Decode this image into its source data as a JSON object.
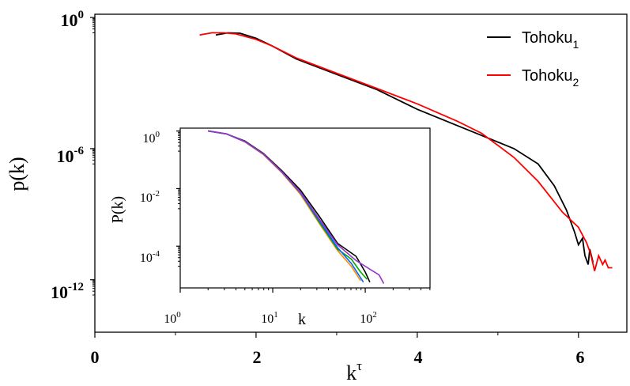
{
  "chart_data": [
    {
      "type": "line",
      "xlabel": {
        "base": "k",
        "sup": "τ"
      },
      "ylabel": "p(k)",
      "xlim": [
        0,
        6.6
      ],
      "ylim_log10": [
        -14.4,
        0.15
      ],
      "yscale": "log",
      "x_ticks": [
        {
          "value": 0,
          "label": "0"
        },
        {
          "value": 2,
          "label": "2"
        },
        {
          "value": 4,
          "label": "4"
        },
        {
          "value": 6,
          "label": "6"
        }
      ],
      "y_ticks": [
        {
          "exp": 0,
          "base": "10",
          "sup": "0"
        },
        {
          "exp": -6,
          "base": "10",
          "sup": "-6"
        },
        {
          "exp": -12,
          "base": "10",
          "sup": "-12"
        }
      ],
      "legend_position": "top-right",
      "series": [
        {
          "name": {
            "base": "Tohoku",
            "sub": "1"
          },
          "color": "#000000",
          "points": [
            [
              1.5,
              -0.8
            ],
            [
              1.65,
              -0.7
            ],
            [
              1.8,
              -0.72
            ],
            [
              2.0,
              -0.95
            ],
            [
              2.2,
              -1.3
            ],
            [
              2.5,
              -1.9
            ],
            [
              3.0,
              -2.6
            ],
            [
              3.5,
              -3.3
            ],
            [
              4.0,
              -4.2
            ],
            [
              4.5,
              -4.95
            ],
            [
              4.8,
              -5.4
            ],
            [
              5.2,
              -6.0
            ],
            [
              5.5,
              -6.7
            ],
            [
              5.7,
              -7.7
            ],
            [
              5.85,
              -8.8
            ],
            [
              5.95,
              -9.8
            ],
            [
              6.0,
              -10.4
            ],
            [
              6.05,
              -10.1
            ],
            [
              6.08,
              -10.9
            ],
            [
              6.12,
              -11.3
            ],
            [
              6.14,
              -10.6
            ],
            [
              6.18,
              -11.2
            ]
          ]
        },
        {
          "name": {
            "base": "Tohoku",
            "sub": "2"
          },
          "color": "#ff0000",
          "points": [
            [
              1.3,
              -0.8
            ],
            [
              1.45,
              -0.7
            ],
            [
              1.6,
              -0.7
            ],
            [
              1.75,
              -0.75
            ],
            [
              2.0,
              -1.0
            ],
            [
              2.2,
              -1.3
            ],
            [
              2.5,
              -1.85
            ],
            [
              3.0,
              -2.55
            ],
            [
              3.5,
              -3.25
            ],
            [
              4.0,
              -3.95
            ],
            [
              4.5,
              -4.75
            ],
            [
              4.8,
              -5.3
            ],
            [
              5.2,
              -6.4
            ],
            [
              5.5,
              -7.5
            ],
            [
              5.8,
              -8.9
            ],
            [
              6.0,
              -9.6
            ],
            [
              6.1,
              -10.3
            ],
            [
              6.15,
              -10.8
            ],
            [
              6.2,
              -11.6
            ],
            [
              6.25,
              -10.9
            ],
            [
              6.3,
              -11.3
            ],
            [
              6.33,
              -11.1
            ],
            [
              6.37,
              -11.45
            ],
            [
              6.42,
              -11.45
            ]
          ]
        }
      ]
    },
    {
      "type": "line",
      "xlabel": "k",
      "ylabel": "P(k)",
      "xscale": "log",
      "yscale": "log",
      "xlim_log10": [
        0,
        2.7
      ],
      "ylim_log10": [
        -5.45,
        0.1
      ],
      "x_ticks": [
        {
          "exp": 0,
          "base": "10",
          "sup": "0"
        },
        {
          "exp": 1,
          "base": "10",
          "sup": "1"
        },
        {
          "exp": 2,
          "base": "10",
          "sup": "2"
        }
      ],
      "y_ticks": [
        {
          "exp": 0,
          "base": "10",
          "sup": "0"
        },
        {
          "exp": -2,
          "base": "10",
          "sup": "-2"
        },
        {
          "exp": -4,
          "base": "10",
          "sup": "-4"
        }
      ],
      "series": [
        {
          "color": "#000000",
          "points": [
            [
              0.3,
              0
            ],
            [
              0.5,
              -0.1
            ],
            [
              0.7,
              -0.35
            ],
            [
              0.9,
              -0.78
            ],
            [
              1.1,
              -1.38
            ],
            [
              1.3,
              -2.05
            ],
            [
              1.5,
              -2.95
            ],
            [
              1.7,
              -3.9
            ],
            [
              1.9,
              -4.35
            ],
            [
              2.0,
              -4.9
            ],
            [
              2.05,
              -5.25
            ]
          ]
        },
        {
          "color": "#ff8c00",
          "points": [
            [
              0.3,
              0
            ],
            [
              0.5,
              -0.1
            ],
            [
              0.7,
              -0.38
            ],
            [
              0.9,
              -0.82
            ],
            [
              1.1,
              -1.45
            ],
            [
              1.3,
              -2.2
            ],
            [
              1.5,
              -3.2
            ],
            [
              1.7,
              -4.15
            ],
            [
              1.85,
              -4.7
            ],
            [
              1.95,
              -5.2
            ]
          ]
        },
        {
          "color": "#00aa00",
          "points": [
            [
              0.3,
              0
            ],
            [
              0.5,
              -0.1
            ],
            [
              0.7,
              -0.37
            ],
            [
              0.9,
              -0.8
            ],
            [
              1.1,
              -1.42
            ],
            [
              1.3,
              -2.15
            ],
            [
              1.5,
              -3.15
            ],
            [
              1.7,
              -4.1
            ],
            [
              1.85,
              -4.45
            ],
            [
              1.95,
              -4.9
            ],
            [
              2.02,
              -5.15
            ]
          ]
        },
        {
          "color": "#0066ff",
          "points": [
            [
              0.3,
              0
            ],
            [
              0.5,
              -0.1
            ],
            [
              0.7,
              -0.37
            ],
            [
              0.9,
              -0.8
            ],
            [
              1.1,
              -1.43
            ],
            [
              1.3,
              -2.15
            ],
            [
              1.5,
              -3.1
            ],
            [
              1.7,
              -4.05
            ],
            [
              1.85,
              -4.6
            ],
            [
              1.98,
              -5.25
            ]
          ]
        },
        {
          "color": "#9933cc",
          "points": [
            [
              0.3,
              0
            ],
            [
              0.5,
              -0.1
            ],
            [
              0.7,
              -0.37
            ],
            [
              0.9,
              -0.8
            ],
            [
              1.1,
              -1.42
            ],
            [
              1.3,
              -2.12
            ],
            [
              1.5,
              -3.05
            ],
            [
              1.7,
              -3.95
            ],
            [
              1.9,
              -4.5
            ],
            [
              2.05,
              -4.8
            ],
            [
              2.15,
              -5.0
            ],
            [
              2.2,
              -5.3
            ]
          ]
        }
      ]
    }
  ]
}
